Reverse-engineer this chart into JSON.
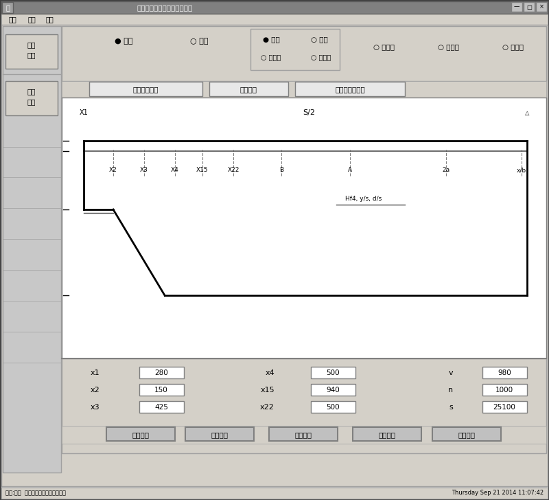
{
  "title": "八主梁参数化计算机建模系统",
  "bg_color": "#c0c0c0",
  "titlebar_color": "#808080",
  "panel_bg": "#d4d0c8",
  "inner_bg": "#ffffff",
  "tab_buttons": [
    "主体结构尺寸",
    "腹板尺寸",
    "系统及其他尺寸"
  ],
  "left_btn1": "入库\n选型",
  "left_btn2": "网络\n划分",
  "param_rows": [
    [
      "x1",
      "280",
      "x4",
      "500",
      "v",
      "980"
    ],
    [
      "x2",
      "150",
      "x15",
      "940",
      "n",
      "1000"
    ],
    [
      "x3",
      "425",
      "x22",
      "500",
      "s",
      "25100"
    ]
  ],
  "bottom_buttons": [
    "打开文件",
    "保存文件",
    "数据输出",
    "开始建模",
    "数据建模"
  ],
  "status_left": "对象:颜色  主梁参数化计算机建模系统",
  "status_right": "Thursday Sep 21 2014 11:07:42",
  "diagram": {
    "x1_label": "X1",
    "s2_label": "S/2",
    "mid_labels": [
      "X2",
      "X3",
      "X4",
      "X15",
      "X22",
      "B",
      "A",
      "2a",
      "x/b"
    ],
    "sub_label": "Hf4, y/s, d/s"
  }
}
